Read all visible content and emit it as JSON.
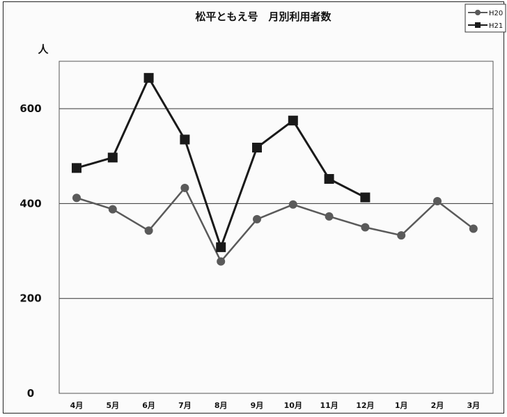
{
  "chart_data": {
    "type": "line",
    "title": "松平ともえ号　月別利用者数",
    "ylabel": "人",
    "xlabel": "",
    "categories": [
      "4月",
      "5月",
      "6月",
      "7月",
      "8月",
      "9月",
      "10月",
      "11月",
      "12月",
      "1月",
      "2月",
      "3月"
    ],
    "ylim": [
      0,
      700
    ],
    "yticks": [
      0,
      200,
      400,
      600
    ],
    "grid": true,
    "legend_position": "top-right",
    "series": [
      {
        "name": "H20",
        "color": "#5a5a5a",
        "marker": "circle",
        "values": [
          412,
          388,
          343,
          433,
          278,
          367,
          398,
          373,
          350,
          333,
          405,
          347
        ]
      },
      {
        "name": "H21",
        "color": "#1a1a1a",
        "marker": "square",
        "values": [
          475,
          497,
          665,
          535,
          308,
          518,
          575,
          452,
          413,
          null,
          null,
          null
        ]
      }
    ]
  }
}
